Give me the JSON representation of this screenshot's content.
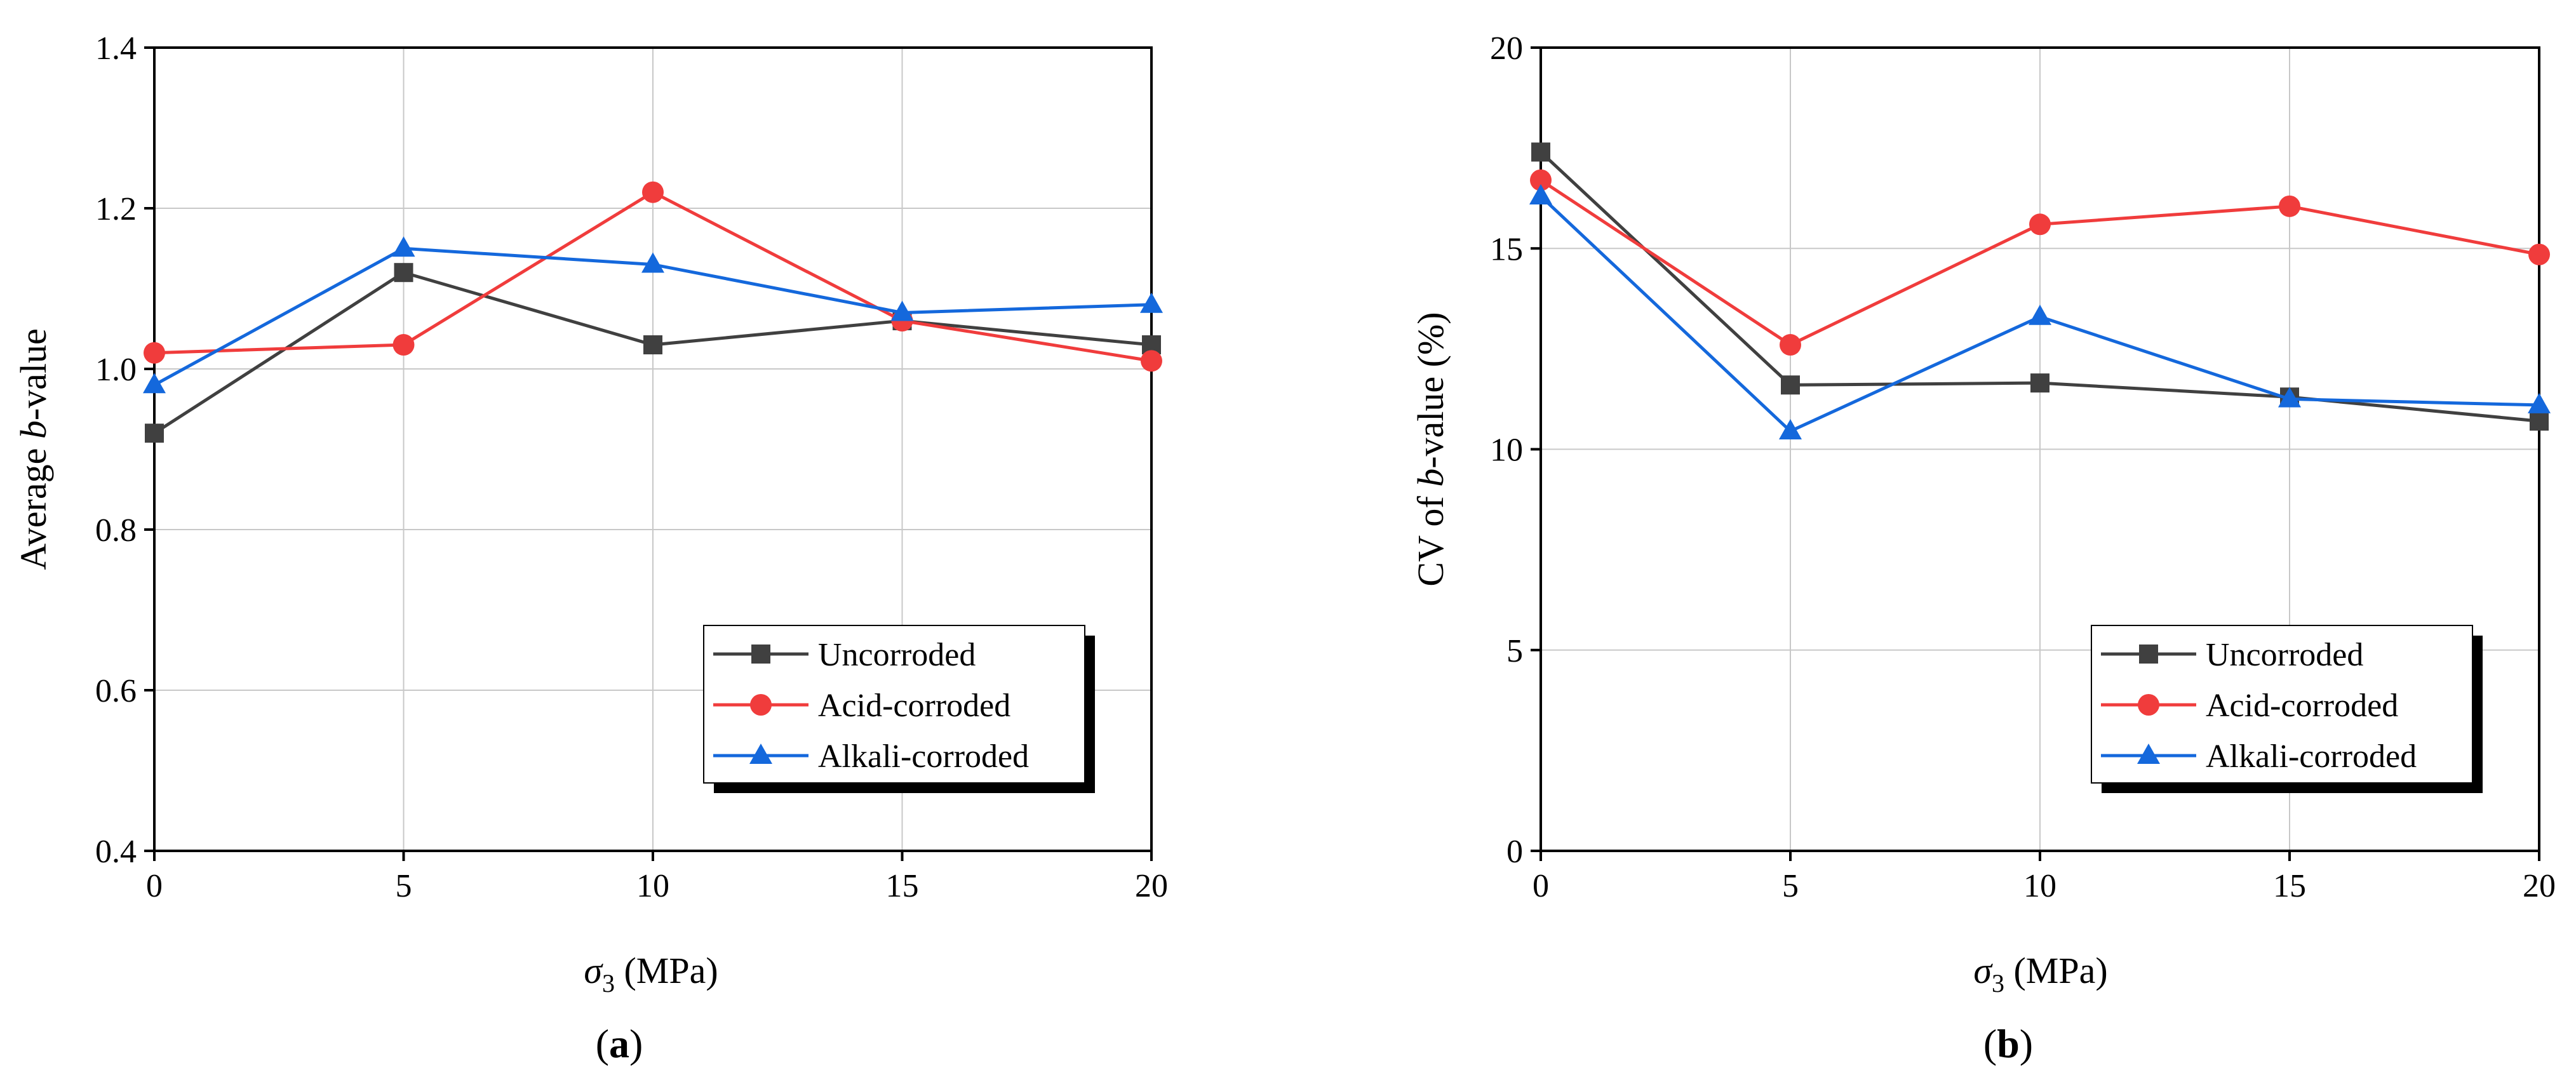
{
  "chart_data": [
    {
      "type": "line",
      "panel_label": "a",
      "panel_label_display": "(a)",
      "x": [
        0,
        5,
        10,
        15,
        20
      ],
      "xlabel": "σ3 (MPa)",
      "xlabel_symbol": "σ",
      "xlabel_subscript": "3",
      "xlabel_unit": " (MPa)",
      "ylabel": "Average b-value",
      "ylabel_parts": [
        "Average ",
        "b",
        "-value"
      ],
      "xlim": [
        0,
        20
      ],
      "ylim": [
        0.4,
        1.4
      ],
      "xticks": [
        0,
        5,
        10,
        15,
        20
      ],
      "xtick_labels": [
        "0",
        "5",
        "10",
        "15",
        "20"
      ],
      "yticks": [
        0.4,
        0.6,
        0.8,
        1.0,
        1.2,
        1.4
      ],
      "ytick_labels": [
        "0.4",
        "0.6",
        "0.8",
        "1.0",
        "1.2",
        "1.4"
      ],
      "grid": true,
      "legend_position": "bottom-right",
      "series": [
        {
          "name": "Uncorroded",
          "color": "#404040",
          "marker": "square",
          "values": [
            0.92,
            1.12,
            1.03,
            1.06,
            1.03
          ]
        },
        {
          "name": "Acid-corroded",
          "color": "#f03c3c",
          "marker": "circle",
          "values": [
            1.02,
            1.03,
            1.22,
            1.06,
            1.01
          ]
        },
        {
          "name": "Alkali-corroded",
          "color": "#1468dc",
          "marker": "triangle",
          "values": [
            0.98,
            1.15,
            1.13,
            1.07,
            1.08
          ]
        }
      ]
    },
    {
      "type": "line",
      "panel_label": "b",
      "panel_label_display": "(b)",
      "x": [
        0,
        5,
        10,
        15,
        20
      ],
      "xlabel": "σ3 (MPa)",
      "xlabel_symbol": "σ",
      "xlabel_subscript": "3",
      "xlabel_unit": " (MPa)",
      "ylabel": "CV of b-value (%)",
      "ylabel_parts": [
        "CV of ",
        "b",
        "-value (%)"
      ],
      "xlim": [
        0,
        20
      ],
      "ylim": [
        0,
        20
      ],
      "xticks": [
        0,
        5,
        10,
        15,
        20
      ],
      "xtick_labels": [
        "0",
        "5",
        "10",
        "15",
        "20"
      ],
      "yticks": [
        0,
        5,
        10,
        15,
        20
      ],
      "ytick_labels": [
        "0",
        "5",
        "10",
        "15",
        "20"
      ],
      "grid": true,
      "legend_position": "bottom-right",
      "series": [
        {
          "name": "Uncorroded",
          "color": "#404040",
          "marker": "square",
          "values": [
            17.4,
            11.6,
            11.65,
            11.3,
            10.7
          ]
        },
        {
          "name": "Acid-corroded",
          "color": "#f03c3c",
          "marker": "circle",
          "values": [
            16.7,
            12.6,
            15.6,
            16.05,
            14.85
          ]
        },
        {
          "name": "Alkali-corroded",
          "color": "#1468dc",
          "marker": "triangle",
          "values": [
            16.3,
            10.45,
            13.3,
            11.25,
            11.1
          ]
        }
      ]
    }
  ]
}
